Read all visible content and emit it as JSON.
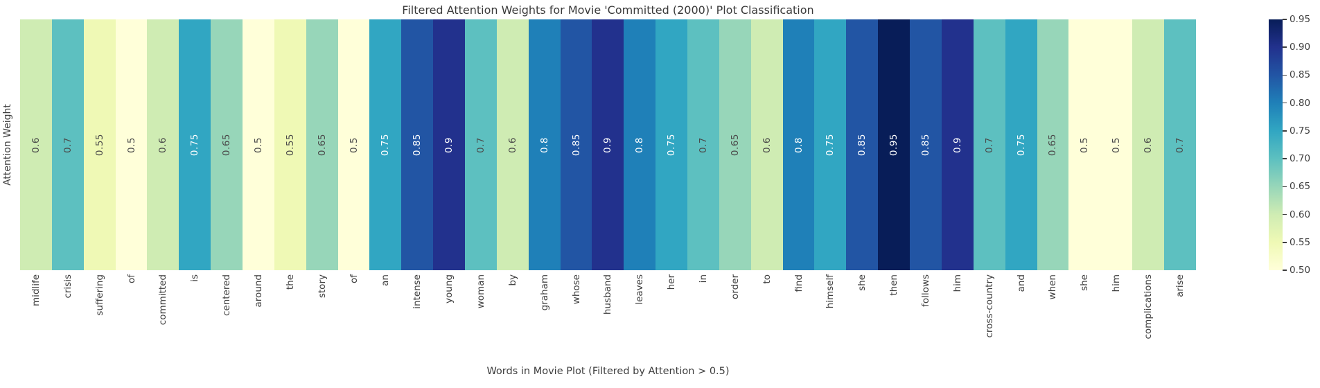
{
  "chart_data": {
    "type": "heatmap",
    "title": "Filtered Attention Weights for Movie 'Committed (2000)' Plot Classification",
    "xlabel": "Words in Movie Plot (Filtered by Attention > 0.5)",
    "ylabel": "Attention Weight",
    "categories": [
      "midlife",
      "crisis",
      "suffering",
      "of",
      "committed",
      "is",
      "centered",
      "around",
      "the",
      "story",
      "of",
      "an",
      "intense",
      "young",
      "woman",
      "by",
      "graham",
      "whose",
      "husband",
      "leaves",
      "her",
      "in",
      "order",
      "to",
      "find",
      "himself",
      "she",
      "then",
      "follows",
      "him",
      "cross-country",
      "and",
      "when",
      "she",
      "him",
      "complications",
      "arise"
    ],
    "values": [
      0.6,
      0.7,
      0.55,
      0.5,
      0.6,
      0.75,
      0.65,
      0.5,
      0.55,
      0.65,
      0.5,
      0.75,
      0.85,
      0.9,
      0.7,
      0.6,
      0.8,
      0.85,
      0.9,
      0.8,
      0.75,
      0.7,
      0.65,
      0.6,
      0.8,
      0.75,
      0.85,
      0.95,
      0.85,
      0.9,
      0.7,
      0.75,
      0.65,
      0.5,
      0.5,
      0.6,
      0.7
    ],
    "colormap": "YlGnBu",
    "vmin": 0.5,
    "vmax": 0.95,
    "grid": false,
    "annotations_shown": true,
    "rows": 1
  },
  "value_colors": {
    "0.5": "#ffffd9",
    "0.55": "#eff9b5",
    "0.6": "#cfecb3",
    "0.65": "#97d6b9",
    "0.7": "#5dc0c0",
    "0.75": "#31a6c2",
    "0.8": "#1f80b8",
    "0.85": "#2255a4",
    "0.9": "#22318d",
    "0.95": "#081d58"
  },
  "annotation_text": {
    "dark": "#4a4a4a",
    "light": "#ffffff",
    "light_threshold": 0.75
  },
  "colorbar": {
    "tick_labels_bottom_to_top": [
      "0.50",
      "0.55",
      "0.60",
      "0.65",
      "0.70",
      "0.75",
      "0.80",
      "0.85",
      "0.90",
      "0.95"
    ],
    "gradient_stops_bottom_to_top": [
      "#ffffd9",
      "#eff9b5",
      "#cfecb3",
      "#97d6b9",
      "#5dc0c0",
      "#31a6c2",
      "#1f80b8",
      "#2255a4",
      "#22318d",
      "#081d58"
    ]
  }
}
